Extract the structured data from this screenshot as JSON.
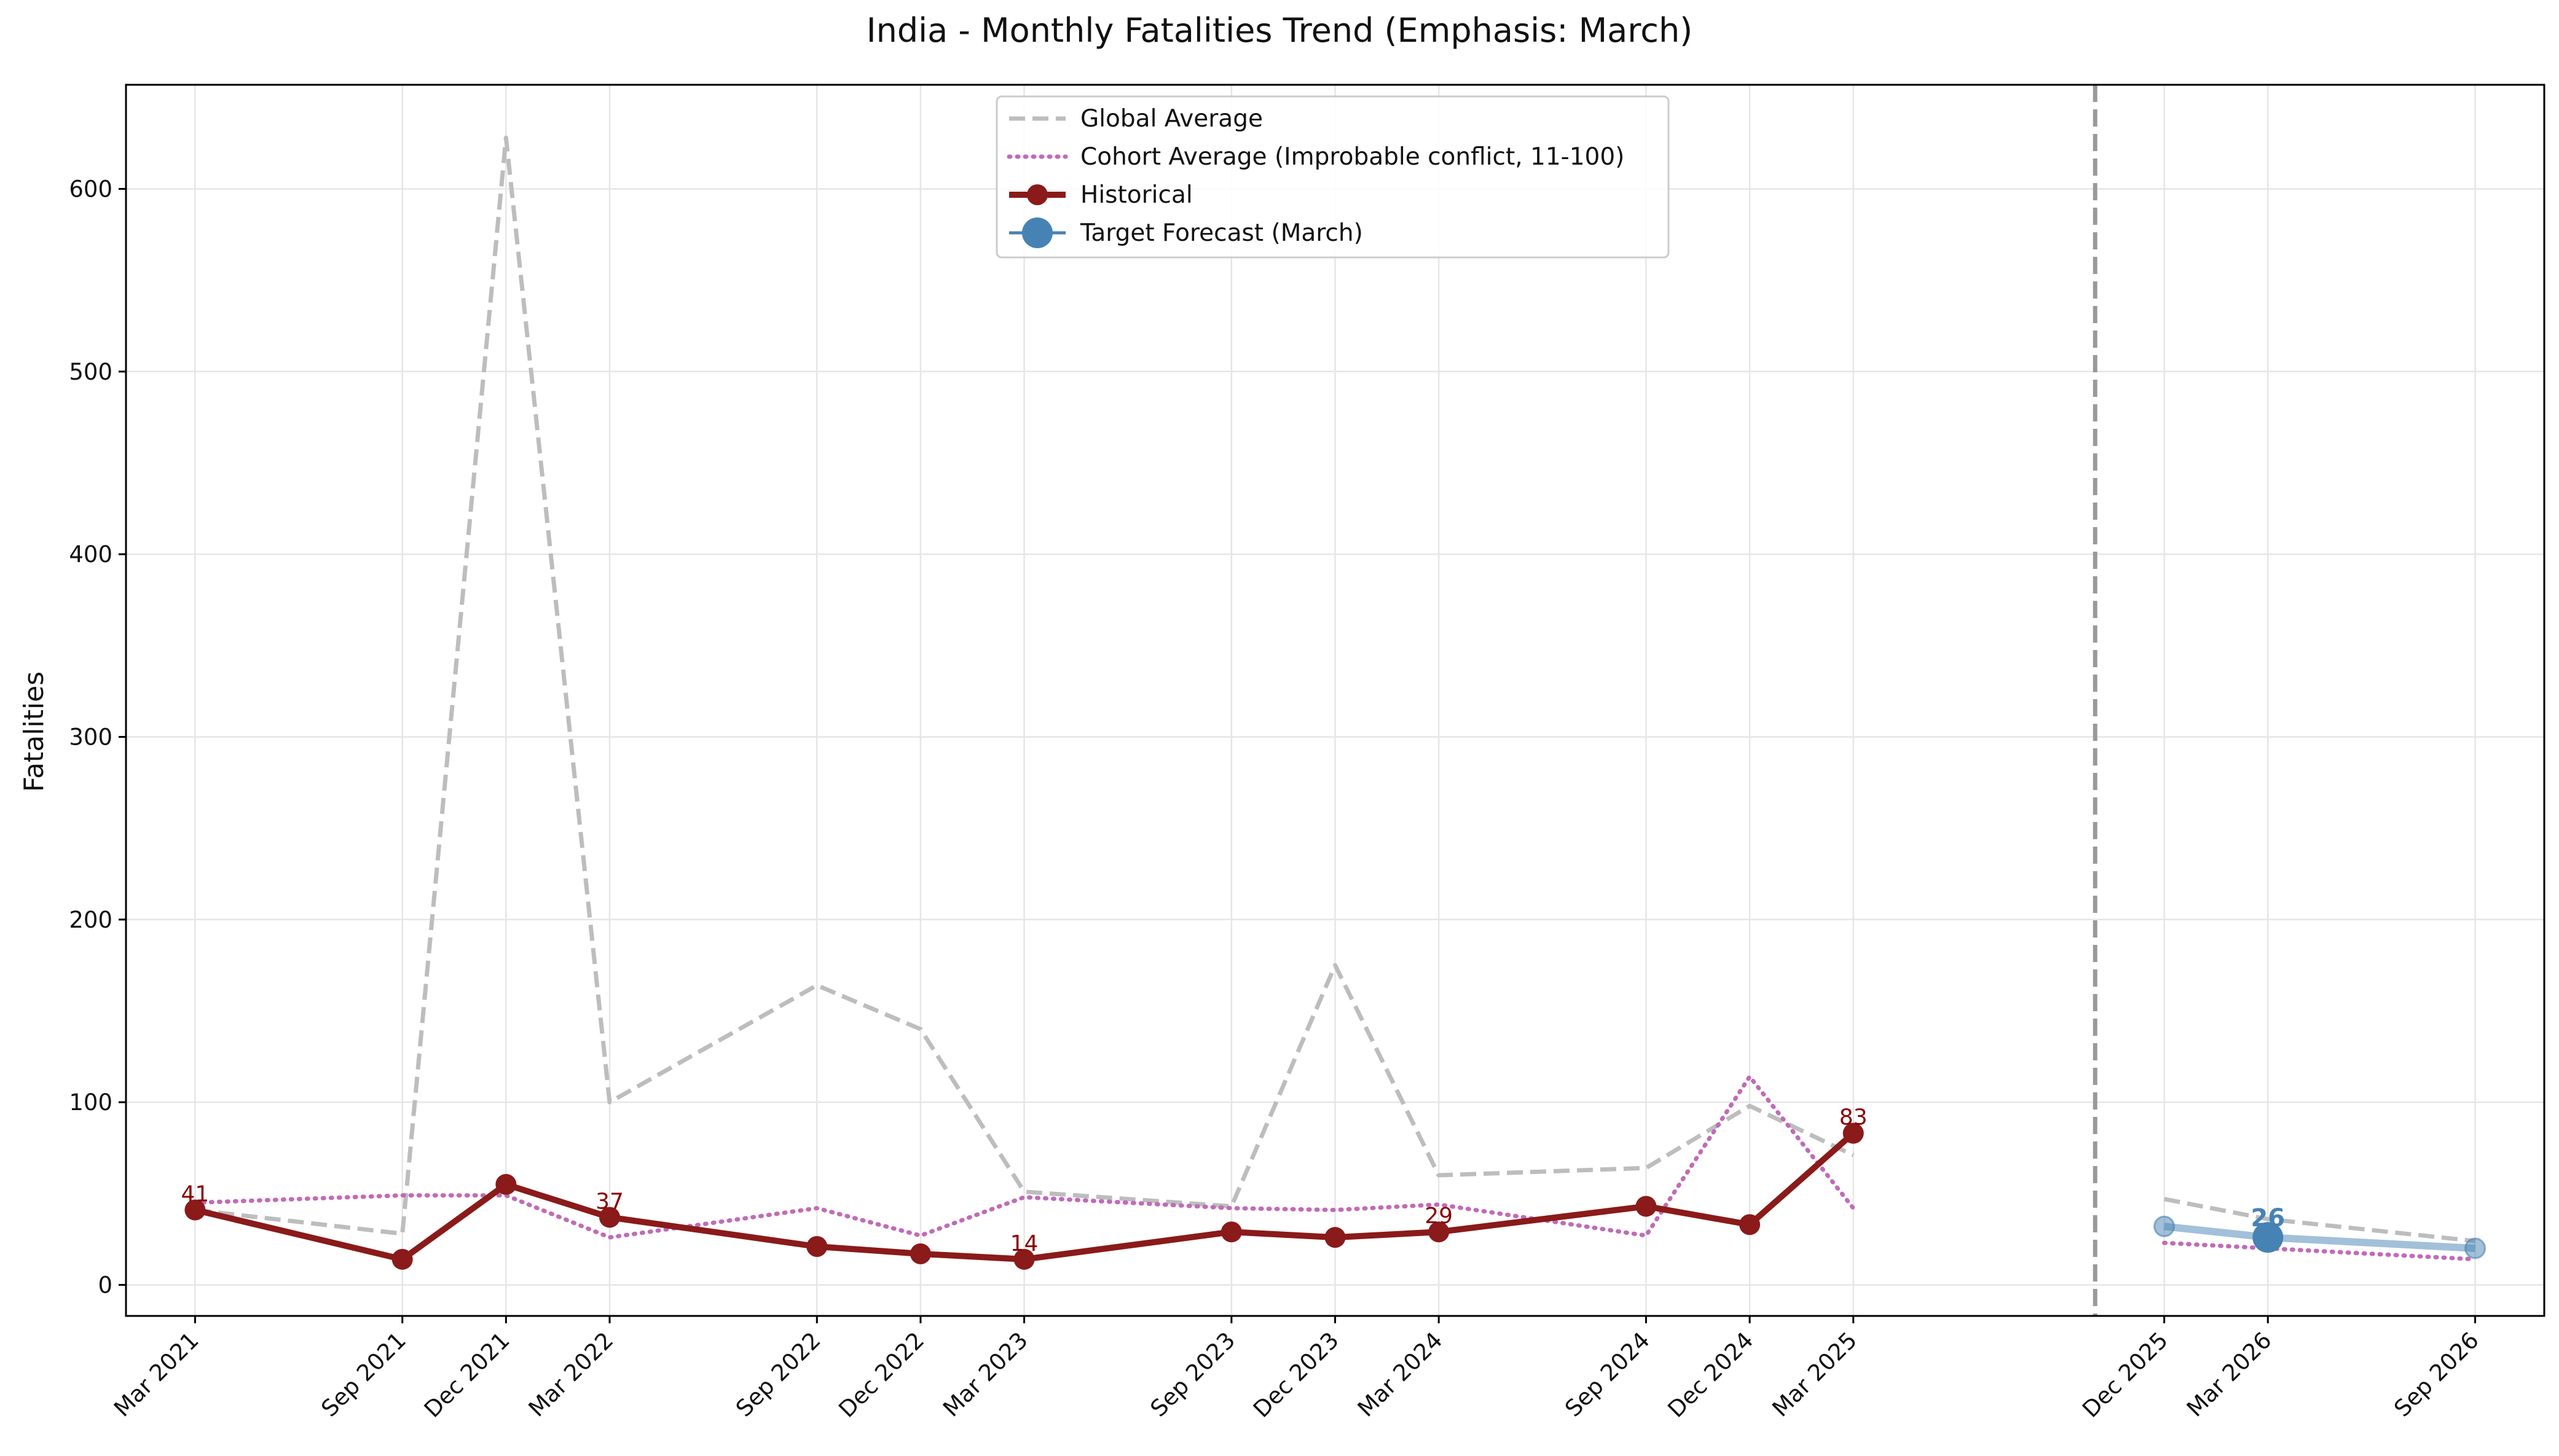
{
  "chart_data": {
    "type": "line",
    "title": "India - Monthly Fatalities Trend (Emphasis: March)",
    "xlabel": "",
    "ylabel": "Fatalities",
    "ylim": [
      -17,
      657
    ],
    "yticks": [
      0,
      100,
      200,
      300,
      400,
      500,
      600
    ],
    "x_range": [
      "2021-01",
      "2026-11"
    ],
    "grid": true,
    "legend_placement": "top-center",
    "forecast_divider": "2025-10",
    "tick_labels": [
      "Mar 2021",
      "Sep 2021",
      "Dec 2021",
      "Mar 2022",
      "Sep 2022",
      "Dec 2022",
      "Mar 2023",
      "Sep 2023",
      "Dec 2023",
      "Mar 2024",
      "Sep 2024",
      "Dec 2024",
      "Mar 2025",
      "Dec 2025",
      "Mar 2026",
      "Sep 2026"
    ],
    "tick_dates": [
      "2021-03",
      "2021-09",
      "2021-12",
      "2022-03",
      "2022-09",
      "2022-12",
      "2023-03",
      "2023-09",
      "2023-12",
      "2024-03",
      "2024-09",
      "2024-12",
      "2025-03",
      "2025-12",
      "2026-03",
      "2026-09"
    ],
    "series": [
      {
        "name": "Global Average",
        "style": "dashed",
        "color": "#bdbdbd",
        "segments": [
          {
            "x": [
              "2021-03",
              "2021-09",
              "2021-12",
              "2022-03",
              "2022-09",
              "2022-12",
              "2023-03",
              "2023-09",
              "2023-12",
              "2024-03",
              "2024-09",
              "2024-12",
              "2025-03"
            ],
            "y": [
              41,
              28,
              628,
              100,
              164,
              140,
              51,
              43,
              175,
              60,
              64,
              98,
              71
            ]
          },
          {
            "x": [
              "2025-12",
              "2026-03",
              "2026-09"
            ],
            "y": [
              47,
              36,
              24
            ]
          }
        ]
      },
      {
        "name": "Cohort Average (Improbable conflict, 11-100)",
        "style": "dotted",
        "color": "#c06bb8",
        "segments": [
          {
            "x": [
              "2021-03",
              "2021-09",
              "2021-12",
              "2022-03",
              "2022-09",
              "2022-12",
              "2023-03",
              "2023-09",
              "2023-12",
              "2024-03",
              "2024-09",
              "2024-12",
              "2025-03"
            ],
            "y": [
              45,
              49,
              49,
              26,
              42,
              27,
              48,
              42,
              41,
              44,
              27,
              114,
              42
            ]
          },
          {
            "x": [
              "2025-12",
              "2026-03",
              "2026-09"
            ],
            "y": [
              23,
              20,
              14
            ]
          }
        ]
      },
      {
        "name": "Historical",
        "style": "solid-markers",
        "color": "#8b1a1a",
        "x": [
          "2021-03",
          "2021-09",
          "2021-12",
          "2022-03",
          "2022-09",
          "2022-12",
          "2023-03",
          "2023-09",
          "2023-12",
          "2024-03",
          "2024-09",
          "2024-12",
          "2025-03"
        ],
        "y": [
          41,
          14,
          55,
          37,
          21,
          17,
          14,
          29,
          26,
          29,
          43,
          33,
          83
        ]
      },
      {
        "name": "Target Forecast (March)",
        "style": "forecast",
        "color": "#4682b4",
        "x": [
          "2025-12",
          "2026-03",
          "2026-09"
        ],
        "y": [
          32,
          26,
          20
        ],
        "emphasis": "2026-03"
      }
    ],
    "annotations": [
      {
        "x": "2021-03",
        "y": 41,
        "text": "41",
        "series": "Historical"
      },
      {
        "x": "2022-03",
        "y": 37,
        "text": "37",
        "series": "Historical"
      },
      {
        "x": "2023-03",
        "y": 14,
        "text": "14",
        "series": "Historical"
      },
      {
        "x": "2024-03",
        "y": 29,
        "text": "29",
        "series": "Historical"
      },
      {
        "x": "2025-03",
        "y": 83,
        "text": "83",
        "series": "Historical"
      },
      {
        "x": "2026-03",
        "y": 26,
        "text": "26",
        "series": "Target Forecast (March)"
      }
    ]
  }
}
